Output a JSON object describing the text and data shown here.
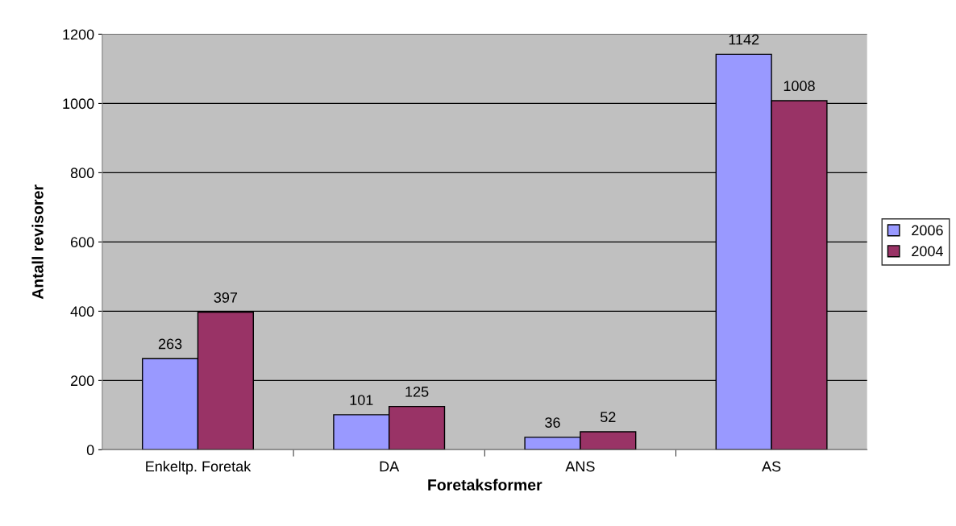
{
  "chart_data": {
    "type": "bar",
    "xlabel": "Foretaksformer",
    "ylabel": "Antall revisorer",
    "categories": [
      "Enkeltp. Foretak",
      "DA",
      "ANS",
      "AS"
    ],
    "series": [
      {
        "name": "2006",
        "color": "#9999ff",
        "values": [
          263,
          101,
          36,
          1142
        ]
      },
      {
        "name": "2004",
        "color": "#993366",
        "values": [
          397,
          125,
          52,
          1008
        ]
      }
    ],
    "ylim": [
      0,
      1200
    ],
    "yticks": [
      0,
      200,
      400,
      600,
      800,
      1000,
      1200
    ],
    "grid": "y",
    "legend": "right",
    "data_labels": true
  }
}
